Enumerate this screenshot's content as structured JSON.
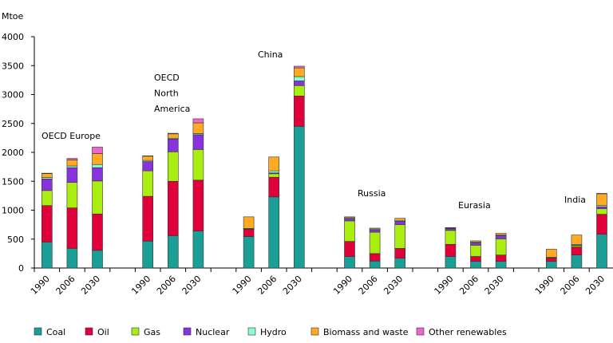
{
  "chart_data": {
    "type": "bar",
    "stacked": true,
    "ylabel": "Mtoe",
    "ylim": [
      0,
      4000
    ],
    "yticks": [
      0,
      500,
      1000,
      1500,
      2000,
      2500,
      3000,
      3500,
      4000
    ],
    "grid": false,
    "legend_position": "bottom",
    "series": [
      {
        "name": "Coal",
        "color": "#1a9e96"
      },
      {
        "name": "Oil",
        "color": "#e0003a"
      },
      {
        "name": "Gas",
        "color": "#aaee11"
      },
      {
        "name": "Nuclear",
        "color": "#8833dd"
      },
      {
        "name": "Hydro",
        "color": "#88ffcc"
      },
      {
        "name": "Biomass and waste",
        "color": "#ffaa22"
      },
      {
        "name": "Other renewables",
        "color": "#ee66cc"
      }
    ],
    "groups": [
      {
        "label": "OECD Europe",
        "label_lines": [
          "OECD Europe"
        ],
        "bars": [
          {
            "year": "1990",
            "values": [
              450,
              630,
              260,
              200,
              25,
              70,
              5
            ]
          },
          {
            "year": "2006",
            "values": [
              340,
              700,
              440,
              255,
              30,
              105,
              25
            ]
          },
          {
            "year": "2030",
            "values": [
              305,
              630,
              570,
              230,
              55,
              190,
              110
            ]
          }
        ]
      },
      {
        "label": "OECD North America",
        "label_lines": [
          "OECD",
          "North",
          "America"
        ],
        "bars": [
          {
            "year": "1990",
            "values": [
              465,
              775,
              440,
              160,
              20,
              75,
              5
            ]
          },
          {
            "year": "2006",
            "values": [
              560,
              940,
              510,
              220,
              15,
              75,
              10
            ]
          },
          {
            "year": "2030",
            "values": [
              640,
              880,
              530,
              255,
              20,
              185,
              70
            ]
          }
        ]
      },
      {
        "label": "China",
        "label_lines": [
          "China"
        ],
        "bars": [
          {
            "year": "1990",
            "values": [
              545,
              125,
              5,
              0,
              10,
              200,
              0
            ]
          },
          {
            "year": "2006",
            "values": [
              1230,
              340,
              60,
              15,
              35,
              240,
              0
            ]
          },
          {
            "year": "2030",
            "values": [
              2450,
              525,
              180,
              80,
              75,
              150,
              30
            ]
          }
        ]
      },
      {
        "label": "Russia",
        "label_lines": [
          "Russia"
        ],
        "bars": [
          {
            "year": "1990",
            "values": [
              200,
              260,
              355,
              40,
              15,
              15,
              0
            ]
          },
          {
            "year": "2006",
            "values": [
              120,
              130,
              370,
              40,
              15,
              15,
              0
            ]
          },
          {
            "year": "2030",
            "values": [
              170,
              170,
              410,
              60,
              15,
              35,
              0
            ]
          }
        ]
      },
      {
        "label": "Eurasia",
        "label_lines": [
          "Eurasia"
        ],
        "bars": [
          {
            "year": "1990",
            "values": [
              200,
              210,
              240,
              30,
              10,
              10,
              0
            ]
          },
          {
            "year": "2006",
            "values": [
              115,
              85,
              195,
              40,
              15,
              20,
              0
            ]
          },
          {
            "year": "2030",
            "values": [
              115,
              110,
              280,
              55,
              15,
              25,
              0
            ]
          }
        ]
      },
      {
        "label": "India",
        "label_lines": [
          "India"
        ],
        "bars": [
          {
            "year": "1990",
            "values": [
              115,
              55,
              10,
              0,
              5,
              140,
              0
            ]
          },
          {
            "year": "2006",
            "values": [
              225,
              140,
              25,
              5,
              15,
              160,
              0
            ]
          },
          {
            "year": "2030",
            "values": [
              585,
              345,
              95,
              35,
              20,
              205,
              5
            ]
          }
        ]
      }
    ]
  }
}
